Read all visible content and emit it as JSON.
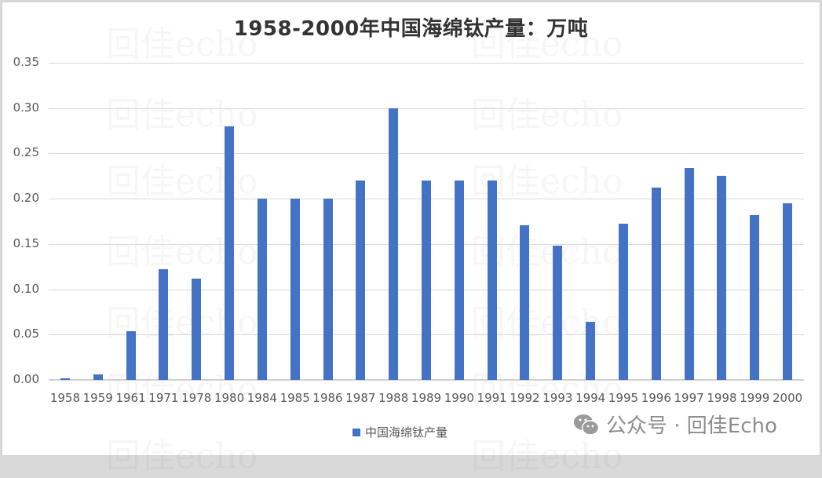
{
  "chart_data": {
    "type": "bar",
    "title": "1958-2000年中国海绵钛产量：万吨",
    "xlabel": "",
    "ylabel": "",
    "ylim": [
      0,
      0.35
    ],
    "yticks": [
      "0.00",
      "0.05",
      "0.10",
      "0.15",
      "0.20",
      "0.25",
      "0.30",
      "0.35"
    ],
    "grid": true,
    "legend_position": "bottom",
    "categories": [
      "1958",
      "1959",
      "1961",
      "1971",
      "1978",
      "1980",
      "1984",
      "1985",
      "1986",
      "1987",
      "1988",
      "1989",
      "1990",
      "1991",
      "1992",
      "1993",
      "1994",
      "1995",
      "1996",
      "1997",
      "1998",
      "1999",
      "2000"
    ],
    "series": [
      {
        "name": "中国海绵钛产量",
        "color": "#4472c4",
        "values": [
          0.002,
          0.006,
          0.054,
          0.122,
          0.112,
          0.28,
          0.2,
          0.2,
          0.2,
          0.22,
          0.3,
          0.22,
          0.22,
          0.22,
          0.171,
          0.148,
          0.064,
          0.172,
          0.212,
          0.234,
          0.225,
          0.182,
          0.195
        ]
      }
    ]
  },
  "watermark": {
    "text": "回佳echo",
    "badge_text": "公众号 · 回佳Echo",
    "badge_icon": "wechat-icon"
  }
}
